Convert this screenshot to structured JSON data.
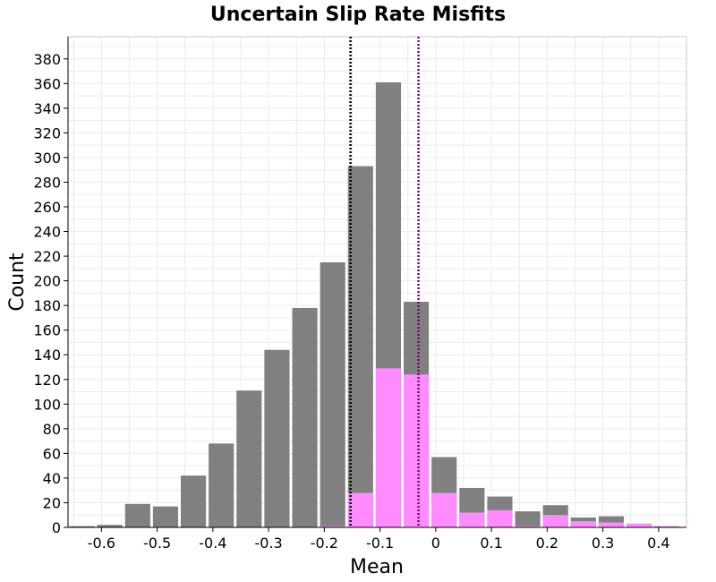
{
  "chart_data": {
    "type": "bar",
    "title": "Uncertain Slip Rate Misfits",
    "xlabel": "Mean",
    "ylabel": "Count",
    "xlim": [
      -0.66,
      0.45
    ],
    "ylim": [
      0,
      398
    ],
    "x_ticks": [
      -0.6,
      -0.5,
      -0.4,
      -0.3,
      -0.2,
      -0.1,
      0,
      0.1,
      0.2,
      0.3,
      0.4
    ],
    "x_tick_labels": [
      "-0.6",
      "-0.5",
      "-0.4",
      "-0.3",
      "-0.2",
      "-0.1",
      "0",
      "0.1",
      "0.2",
      "0.3",
      "0.4"
    ],
    "y_ticks": [
      0,
      20,
      40,
      60,
      80,
      100,
      120,
      140,
      160,
      180,
      200,
      220,
      240,
      260,
      280,
      300,
      320,
      340,
      360,
      380
    ],
    "y_tick_labels": [
      "0",
      "20",
      "40",
      "60",
      "80",
      "100",
      "120",
      "140",
      "160",
      "180",
      "200",
      "220",
      "240",
      "260",
      "280",
      "300",
      "320",
      "340",
      "360",
      "380"
    ],
    "bin_width": 0.05,
    "bin_centers": [
      -0.635,
      -0.585,
      -0.535,
      -0.485,
      -0.435,
      -0.385,
      -0.335,
      -0.285,
      -0.235,
      -0.185,
      -0.135,
      -0.085,
      -0.035,
      0.015,
      0.065,
      0.115,
      0.165,
      0.215,
      0.265,
      0.315,
      0.365,
      0.415
    ],
    "series": [
      {
        "color": "#808080",
        "values": [
          1,
          2,
          19,
          17,
          42,
          68,
          111,
          144,
          178,
          215,
          293,
          361,
          183,
          57,
          32,
          25,
          13,
          18,
          8,
          9,
          3,
          1
        ]
      },
      {
        "color": "#ff8cff",
        "values": [
          0,
          0,
          0,
          0,
          0,
          0,
          0,
          0,
          0,
          1,
          28,
          129,
          124,
          28,
          12,
          14,
          1,
          10,
          5,
          4,
          3,
          1
        ]
      }
    ],
    "reference_lines": [
      {
        "x": -0.153,
        "color": "#000000",
        "style": "dotted"
      },
      {
        "x": -0.031,
        "color": "#800080",
        "style": "dotted"
      }
    ],
    "grid": true
  }
}
